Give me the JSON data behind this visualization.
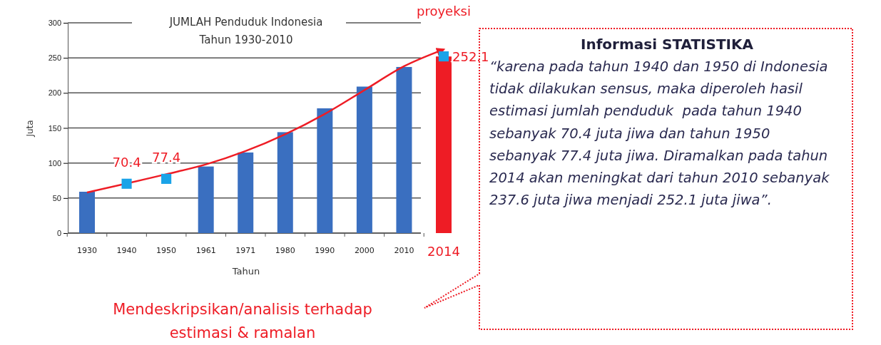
{
  "chart_data": [
    {
      "type": "bar",
      "title": "JUMLAH Penduduk Indonesia\nTahun 1930-2010",
      "xlabel": "Tahun",
      "ylabel": "Juta",
      "categories": [
        "1930",
        "1940",
        "1950",
        "1961",
        "1971",
        "1980",
        "1990",
        "2000",
        "2010",
        "2014"
      ],
      "series": [
        {
          "type": "bar",
          "color": "#3a6fc0",
          "values": [
            59,
            null,
            null,
            95,
            115,
            144,
            178,
            209,
            237,
            null
          ]
        },
        {
          "type": "bar",
          "color": "#ee1c25",
          "values": [
            null,
            null,
            null,
            null,
            null,
            null,
            null,
            null,
            null,
            252
          ]
        },
        {
          "type": "line",
          "color": "#ee1c25",
          "values": [
            58,
            null,
            84,
            98,
            117,
            141,
            170,
            204,
            238,
            262
          ]
        },
        {
          "type": "scatter",
          "color": "#1aa3e8",
          "marker": "square",
          "values": [
            null,
            70.4,
            77.4,
            null,
            null,
            null,
            null,
            null,
            null,
            252.1
          ],
          "value_labels": [
            null,
            "70.4",
            "77.4",
            null,
            null,
            null,
            null,
            null,
            null,
            "252.1"
          ]
        }
      ],
      "ylim": [
        0,
        300
      ],
      "yticks": [
        0,
        50,
        100,
        150,
        200,
        250,
        300
      ],
      "grid": "y",
      "annotations": [
        "proyeksi",
        "Mendeskripsikan/analisis terhadap estimasi & ramalan"
      ]
    },
    {
      "type": "other",
      "title": "Informasi STATISTIKA",
      "annotations": [
        "“karena pada tahun 1940 dan 1950 di Indonesia tidak dilakukan sensus, maka diperoleh hasil estimasi jumlah penduduk  pada tahun 1940 sebanyak 70.4 juta jiwa dan tahun 1950 sebanyak 77.4 juta jiwa. Diramalkan pada tahun 2014 akan meningkat dari tahun 2010 sebanyak 237.6 juta jiwa menjadi 252.1 juta jiwa”."
      ]
    }
  ]
}
